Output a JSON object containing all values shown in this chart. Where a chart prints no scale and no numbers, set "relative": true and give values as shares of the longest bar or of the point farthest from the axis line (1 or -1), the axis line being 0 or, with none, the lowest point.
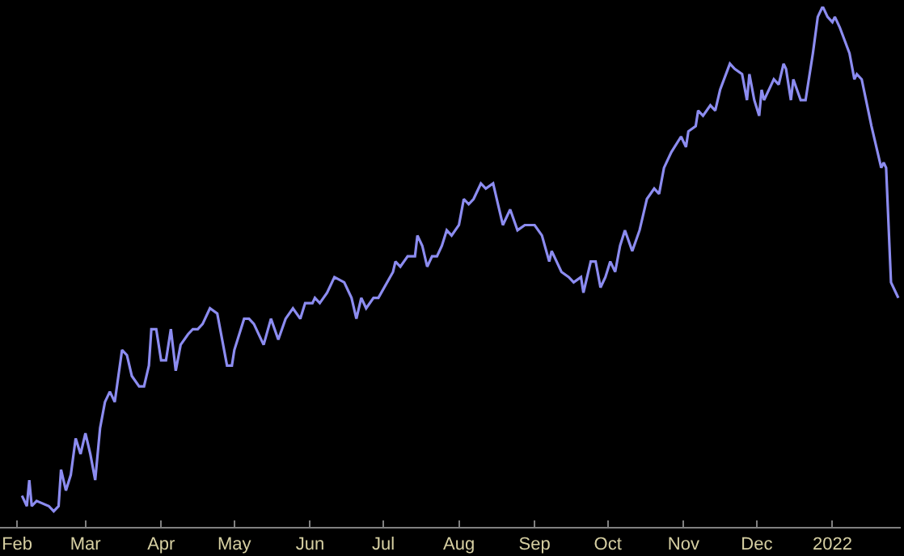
{
  "chart_data": {
    "type": "line",
    "relative": true,
    "marker": "none",
    "line_style": "solid",
    "xlim": [
      "2021-01-25",
      "2022-01-29"
    ],
    "xticks": [
      {
        "value": "2021-02-01",
        "label": "Feb"
      },
      {
        "value": "2021-03-01",
        "label": "Mar"
      },
      {
        "value": "2021-04-01",
        "label": "Apr"
      },
      {
        "value": "2021-05-01",
        "label": "May"
      },
      {
        "value": "2021-06-01",
        "label": "Jun"
      },
      {
        "value": "2021-07-01",
        "label": "Jul"
      },
      {
        "value": "2021-08-01",
        "label": "Aug"
      },
      {
        "value": "2021-09-01",
        "label": "Sep"
      },
      {
        "value": "2021-10-01",
        "label": "Oct"
      },
      {
        "value": "2021-11-01",
        "label": "Nov"
      },
      {
        "value": "2021-12-01",
        "label": "Dec"
      },
      {
        "value": "2022-01-01",
        "label": "2022"
      }
    ],
    "x": [
      "2021-02-03",
      "2021-02-05",
      "2021-02-06",
      "2021-02-07",
      "2021-02-09",
      "2021-02-14",
      "2021-02-16",
      "2021-02-18",
      "2021-02-19",
      "2021-02-21",
      "2021-02-23",
      "2021-02-25",
      "2021-02-27",
      "2021-03-01",
      "2021-03-03",
      "2021-03-05",
      "2021-03-07",
      "2021-03-09",
      "2021-03-11",
      "2021-03-13",
      "2021-03-16",
      "2021-03-18",
      "2021-03-20",
      "2021-03-23",
      "2021-03-25",
      "2021-03-27",
      "2021-03-28",
      "2021-03-30",
      "2021-04-01",
      "2021-04-03",
      "2021-04-05",
      "2021-04-07",
      "2021-04-09",
      "2021-04-12",
      "2021-04-14",
      "2021-04-16",
      "2021-04-18",
      "2021-04-21",
      "2021-04-24",
      "2021-04-26",
      "2021-04-28",
      "2021-04-30",
      "2021-05-01",
      "2021-05-05",
      "2021-05-07",
      "2021-05-09",
      "2021-05-13",
      "2021-05-16",
      "2021-05-19",
      "2021-05-22",
      "2021-05-25",
      "2021-05-28",
      "2021-05-30",
      "2021-06-02",
      "2021-06-03",
      "2021-06-05",
      "2021-06-08",
      "2021-06-11",
      "2021-06-15",
      "2021-06-18",
      "2021-06-20",
      "2021-06-22",
      "2021-06-24",
      "2021-06-27",
      "2021-06-29",
      "2021-07-05",
      "2021-07-06",
      "2021-07-08",
      "2021-07-11",
      "2021-07-14",
      "2021-07-15",
      "2021-07-17",
      "2021-07-19",
      "2021-07-21",
      "2021-07-23",
      "2021-07-25",
      "2021-07-27",
      "2021-07-29",
      "2021-08-01",
      "2021-08-03",
      "2021-08-05",
      "2021-08-07",
      "2021-08-10",
      "2021-08-12",
      "2021-08-15",
      "2021-08-19",
      "2021-08-22",
      "2021-08-25",
      "2021-08-28",
      "2021-09-01",
      "2021-09-04",
      "2021-09-07",
      "2021-09-08",
      "2021-09-12",
      "2021-09-15",
      "2021-09-17",
      "2021-09-20",
      "2021-09-21",
      "2021-09-24",
      "2021-09-26",
      "2021-09-28",
      "2021-09-30",
      "2021-10-02",
      "2021-10-04",
      "2021-10-06",
      "2021-10-08",
      "2021-10-11",
      "2021-10-14",
      "2021-10-17",
      "2021-10-20",
      "2021-10-22",
      "2021-10-24",
      "2021-10-27",
      "2021-10-31",
      "2021-11-02",
      "2021-11-03",
      "2021-11-06",
      "2021-11-07",
      "2021-11-09",
      "2021-11-12",
      "2021-11-14",
      "2021-11-16",
      "2021-11-20",
      "2021-11-22",
      "2021-11-25",
      "2021-11-27",
      "2021-11-28",
      "2021-11-30",
      "2021-12-02",
      "2021-12-03",
      "2021-12-04",
      "2021-12-08",
      "2021-12-10",
      "2021-12-12",
      "2021-12-13",
      "2021-12-15",
      "2021-12-16",
      "2021-12-19",
      "2021-12-21",
      "2021-12-24",
      "2021-12-26",
      "2021-12-28",
      "2021-12-29",
      "2021-12-30",
      "2022-01-01",
      "2022-01-02",
      "2022-01-04",
      "2022-01-08",
      "2022-01-10",
      "2022-01-11",
      "2022-01-13",
      "2022-01-17",
      "2022-01-21",
      "2022-01-22",
      "2022-01-23",
      "2022-01-25",
      "2022-01-27",
      "2022-01-28"
    ],
    "series": [
      {
        "color": "#8c8cf0",
        "values": [
          0.06,
          0.04,
          0.09,
          0.04,
          0.05,
          0.04,
          0.03,
          0.04,
          0.11,
          0.07,
          0.1,
          0.17,
          0.14,
          0.18,
          0.14,
          0.09,
          0.19,
          0.24,
          0.26,
          0.24,
          0.34,
          0.33,
          0.29,
          0.27,
          0.27,
          0.31,
          0.38,
          0.38,
          0.32,
          0.32,
          0.38,
          0.3,
          0.35,
          0.37,
          0.38,
          0.38,
          0.39,
          0.42,
          0.41,
          0.36,
          0.31,
          0.31,
          0.34,
          0.4,
          0.4,
          0.39,
          0.35,
          0.4,
          0.36,
          0.4,
          0.42,
          0.4,
          0.43,
          0.43,
          0.44,
          0.43,
          0.45,
          0.48,
          0.47,
          0.44,
          0.4,
          0.44,
          0.42,
          0.44,
          0.44,
          0.49,
          0.51,
          0.5,
          0.52,
          0.52,
          0.56,
          0.54,
          0.5,
          0.52,
          0.52,
          0.54,
          0.57,
          0.56,
          0.58,
          0.63,
          0.62,
          0.63,
          0.66,
          0.65,
          0.66,
          0.58,
          0.61,
          0.57,
          0.58,
          0.58,
          0.56,
          0.51,
          0.53,
          0.49,
          0.48,
          0.47,
          0.48,
          0.45,
          0.51,
          0.51,
          0.46,
          0.48,
          0.51,
          0.49,
          0.54,
          0.57,
          0.53,
          0.57,
          0.63,
          0.65,
          0.64,
          0.69,
          0.72,
          0.75,
          0.73,
          0.76,
          0.77,
          0.8,
          0.79,
          0.81,
          0.8,
          0.84,
          0.89,
          0.88,
          0.87,
          0.82,
          0.87,
          0.82,
          0.79,
          0.84,
          0.82,
          0.86,
          0.85,
          0.89,
          0.88,
          0.82,
          0.86,
          0.82,
          0.82,
          0.91,
          0.98,
          1.0,
          0.99,
          0.98,
          0.97,
          0.98,
          0.96,
          0.91,
          0.86,
          0.87,
          0.86,
          0.77,
          0.69,
          0.7,
          0.69,
          0.47,
          0.45,
          0.44
        ]
      }
    ]
  }
}
